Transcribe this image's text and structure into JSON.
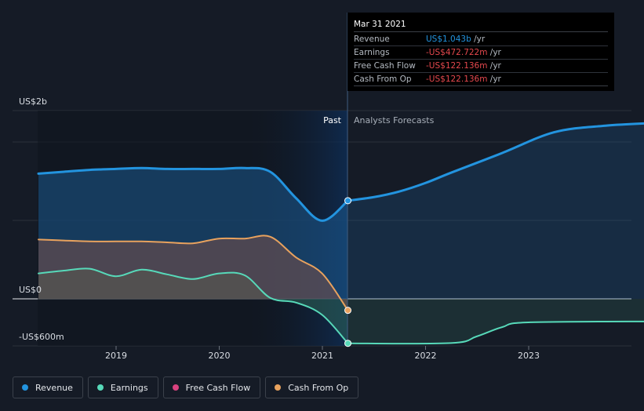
{
  "chart_data": {
    "type": "area",
    "x_ticks": [
      "2019",
      "2020",
      "2021",
      "2022",
      "2023"
    ],
    "y_labels": [
      "US$2b",
      "US$0",
      "-US$600m"
    ],
    "divider_date": "2021-03-31",
    "past_label": "Past",
    "forecast_label": "Analysts Forecasts",
    "series": [
      {
        "name": "Revenue",
        "color": "#2394df",
        "fill": "#1c5a90",
        "points": [
          [
            "2018-03-31",
            1.33
          ],
          [
            "2018-06-30",
            1.35
          ],
          [
            "2018-09-30",
            1.37
          ],
          [
            "2018-12-31",
            1.38
          ],
          [
            "2019-03-31",
            1.39
          ],
          [
            "2019-06-30",
            1.38
          ],
          [
            "2019-09-30",
            1.38
          ],
          [
            "2019-12-31",
            1.38
          ],
          [
            "2020-03-31",
            1.39
          ],
          [
            "2020-06-30",
            1.35
          ],
          [
            "2020-09-30",
            1.07
          ],
          [
            "2020-12-31",
            0.83
          ],
          [
            "2021-03-31",
            1.043
          ]
        ],
        "forecast": [
          [
            "2021-03-31",
            1.043
          ],
          [
            "2021-06-30",
            1.08
          ],
          [
            "2021-09-30",
            1.14
          ],
          [
            "2021-12-31",
            1.23
          ],
          [
            "2022-03-31",
            1.34
          ],
          [
            "2022-09-30",
            1.55
          ],
          [
            "2023-03-31",
            1.77
          ],
          [
            "2023-09-30",
            1.84
          ],
          [
            "2024-03-31",
            1.87
          ]
        ]
      },
      {
        "name": "Earnings",
        "color": "#57d9b9",
        "fill": "#2e6458",
        "points": [
          [
            "2018-03-31",
            0.27
          ],
          [
            "2018-06-30",
            0.3
          ],
          [
            "2018-09-30",
            0.32
          ],
          [
            "2018-12-31",
            0.24
          ],
          [
            "2019-03-31",
            0.31
          ],
          [
            "2019-06-30",
            0.26
          ],
          [
            "2019-09-30",
            0.21
          ],
          [
            "2019-12-31",
            0.27
          ],
          [
            "2020-03-31",
            0.25
          ],
          [
            "2020-06-30",
            0.01
          ],
          [
            "2020-09-30",
            -0.04
          ],
          [
            "2020-12-31",
            -0.17
          ],
          [
            "2021-03-31",
            -0.4727
          ]
        ],
        "forecast": [
          [
            "2021-03-31",
            -0.4727
          ],
          [
            "2022-03-31",
            -0.47
          ],
          [
            "2022-06-30",
            -0.4
          ],
          [
            "2022-09-30",
            -0.3
          ],
          [
            "2022-12-31",
            -0.25
          ],
          [
            "2024-03-31",
            -0.24
          ]
        ]
      },
      {
        "name": "Free Cash Flow",
        "color": "#d9427f",
        "points": [
          [
            "2021-03-31",
            -0.1221
          ]
        ]
      },
      {
        "name": "Cash From Op",
        "color": "#e8a25e",
        "fill": "#7a5048",
        "points": [
          [
            "2018-03-31",
            0.63
          ],
          [
            "2018-06-30",
            0.62
          ],
          [
            "2018-09-30",
            0.61
          ],
          [
            "2018-12-31",
            0.61
          ],
          [
            "2019-03-31",
            0.61
          ],
          [
            "2019-06-30",
            0.6
          ],
          [
            "2019-09-30",
            0.59
          ],
          [
            "2019-12-31",
            0.64
          ],
          [
            "2020-03-31",
            0.64
          ],
          [
            "2020-06-30",
            0.66
          ],
          [
            "2020-09-30",
            0.44
          ],
          [
            "2020-12-31",
            0.27
          ],
          [
            "2021-03-31",
            -0.1221
          ]
        ]
      }
    ]
  },
  "tooltip": {
    "date": "Mar 31 2021",
    "rows": [
      {
        "name": "Revenue",
        "value": "US$1.043b",
        "unit": " /yr",
        "color": "#2394df"
      },
      {
        "name": "Earnings",
        "value": "-US$472.722m",
        "unit": " /yr",
        "color": "#e5484d"
      },
      {
        "name": "Free Cash Flow",
        "value": "-US$122.136m",
        "unit": " /yr",
        "color": "#e5484d"
      },
      {
        "name": "Cash From Op",
        "value": "-US$122.136m",
        "unit": " /yr",
        "color": "#e5484d"
      }
    ]
  },
  "legend": [
    {
      "label": "Revenue",
      "color": "#2394df"
    },
    {
      "label": "Earnings",
      "color": "#57d9b9"
    },
    {
      "label": "Free Cash Flow",
      "color": "#d9427f"
    },
    {
      "label": "Cash From Op",
      "color": "#e8a25e"
    }
  ]
}
